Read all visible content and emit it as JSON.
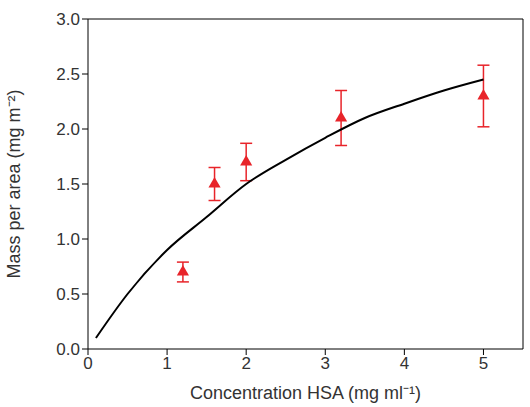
{
  "chart_data": {
    "type": "scatter",
    "x_label": "Concentration HSA (mg ml⁻¹)",
    "y_label": "Mass per area (mg m⁻²)",
    "xlim": [
      0,
      5.5
    ],
    "xticks": [
      0,
      1,
      2,
      3,
      4,
      5
    ],
    "ylim": [
      0,
      3
    ],
    "yticks": [
      {
        "value": 0,
        "label": "0.0"
      },
      {
        "value": 0.5,
        "label": "0.5"
      },
      {
        "value": 1,
        "label": "1.0"
      },
      {
        "value": 1.5,
        "label": "1.5"
      },
      {
        "value": 2,
        "label": "2.0"
      },
      {
        "value": 2.5,
        "label": "2.5"
      },
      {
        "value": 3,
        "label": "3.0"
      }
    ],
    "grid": false,
    "series": [
      {
        "type": "scatter",
        "color": "#e8242a",
        "marker": "triangle",
        "x": [
          1.2,
          1.6,
          2.0,
          3.2,
          5.0
        ],
        "values": [
          0.7,
          1.5,
          1.7,
          2.1,
          2.3
        ],
        "errors": [
          0.09,
          0.15,
          0.17,
          0.25,
          0.28
        ]
      },
      {
        "type": "line",
        "color": "#000000",
        "line_style": "solid",
        "x": [
          0.1,
          0.5,
          1.0,
          1.5,
          2.0,
          2.5,
          3.0,
          3.5,
          4.0,
          4.5,
          5.0
        ],
        "values": [
          0.1,
          0.5,
          0.9,
          1.2,
          1.5,
          1.72,
          1.92,
          2.1,
          2.23,
          2.35,
          2.45
        ]
      }
    ]
  }
}
